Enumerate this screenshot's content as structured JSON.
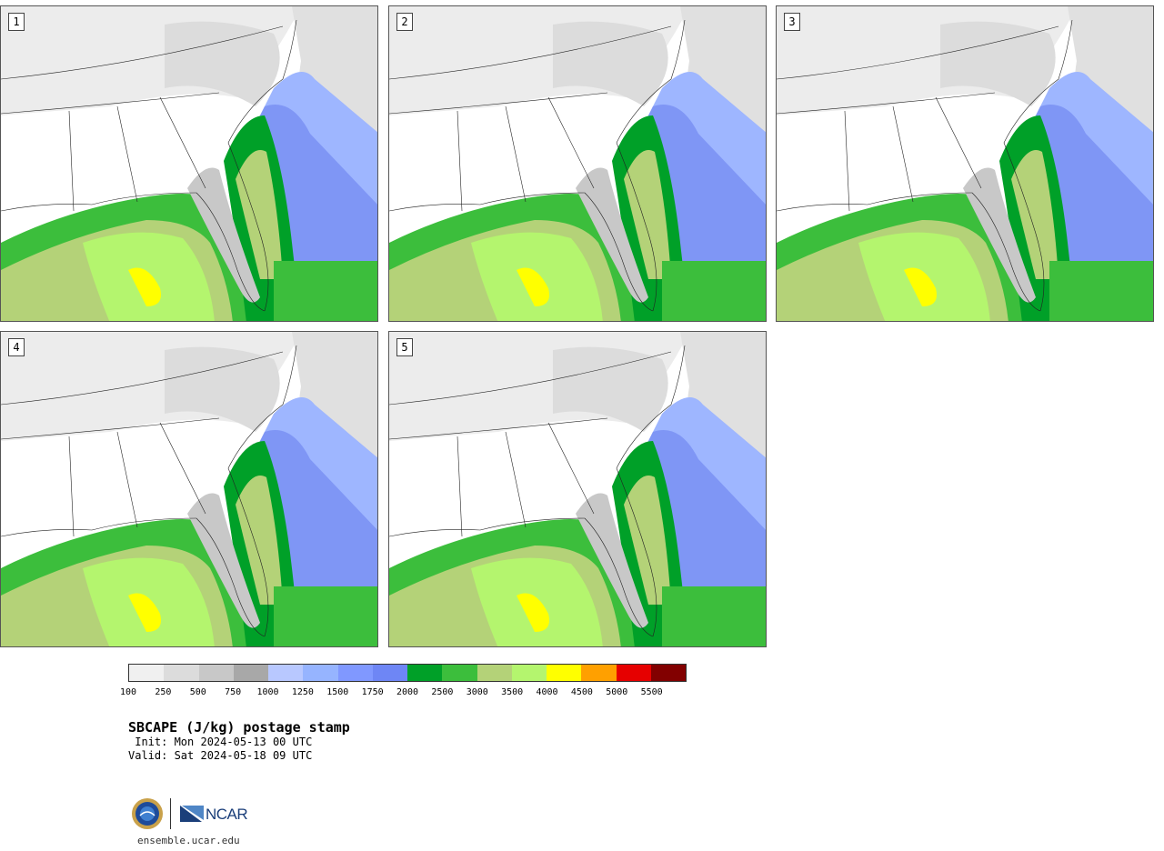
{
  "panels": [
    {
      "label": "1"
    },
    {
      "label": "2"
    },
    {
      "label": "3"
    },
    {
      "label": "4"
    },
    {
      "label": "5"
    }
  ],
  "colorbar": {
    "colors": [
      "#f0f0f0",
      "#dcdcdc",
      "#c8c8c8",
      "#a8a8a8",
      "#b8c8ff",
      "#96b4ff",
      "#8098ff",
      "#6e86f5",
      "#00a028",
      "#3cbe3c",
      "#b4d278",
      "#b4f56e",
      "#ffff00",
      "#ffa000",
      "#e60000",
      "#820000"
    ],
    "ticks": [
      "100",
      "250",
      "500",
      "750",
      "1000",
      "1250",
      "1500",
      "1750",
      "2000",
      "2500",
      "3000",
      "3500",
      "4000",
      "4500",
      "5000",
      "5500"
    ]
  },
  "title": "SBCAPE (J/kg) postage stamp",
  "init": " Init: Mon 2024-05-13 00 UTC",
  "valid": "Valid: Sat 2024-05-18 09 UTC",
  "logos": {
    "left": "nsf-seal",
    "right": "NCAR"
  },
  "site": "ensemble.ucar.edu"
}
